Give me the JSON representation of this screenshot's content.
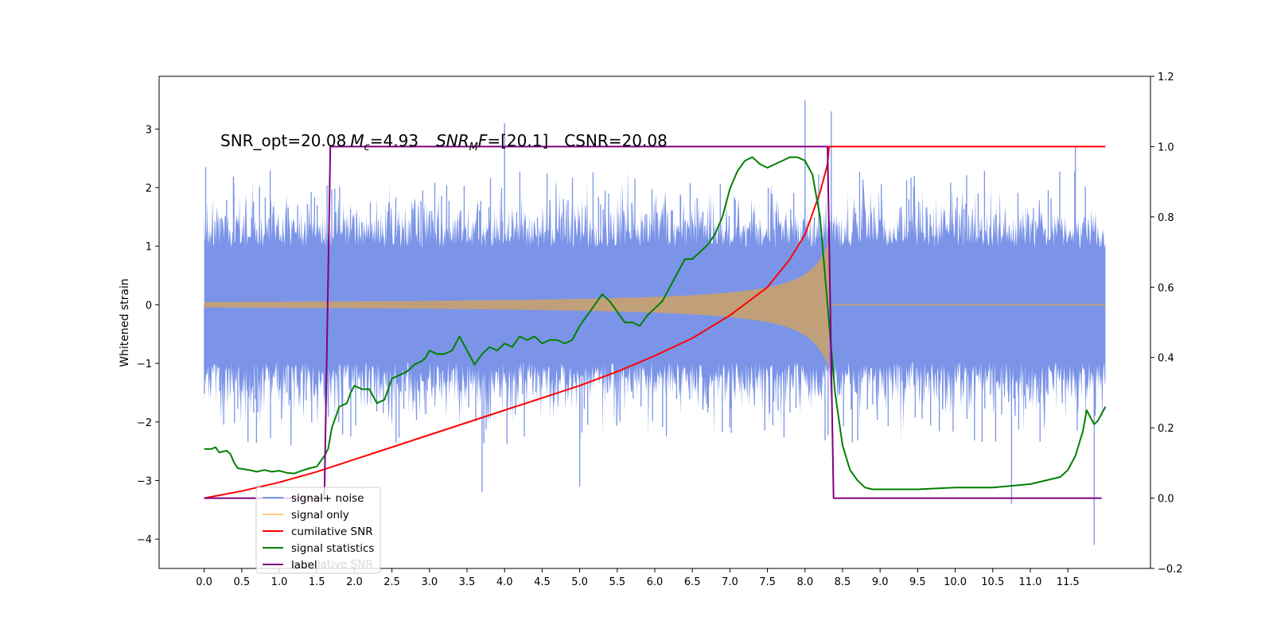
{
  "chart_data": {
    "type": "line",
    "title": "",
    "annotation": {
      "snr_opt": "SNR_opt=20.08",
      "mc_sym": "M",
      "mc_sub": "c",
      "mc_val": "=4.93",
      "snrmf_sym": "SNR",
      "snrmf_sub": "M",
      "snrmf_sym2": "F",
      "snrmf_val": "=[20.1]",
      "csnr": "CSNR=20.08"
    },
    "xlabel": "",
    "ylabel": "Whitened strain",
    "ylabel_right": "",
    "xlim": [
      -0.6,
      12.6
    ],
    "ylim": [
      -4.5,
      3.9
    ],
    "ylim_right": [
      -0.2,
      1.2
    ],
    "x_ticks": [
      "0.0",
      "0.5",
      "1.0",
      "1.5",
      "2.0",
      "2.5",
      "3.0",
      "3.5",
      "4.0",
      "4.5",
      "5.0",
      "5.5",
      "6.0",
      "6.5",
      "7.0",
      "7.5",
      "8.0",
      "8.5",
      "9.0",
      "9.5",
      "10.0",
      "10.5",
      "11.0",
      "11.5"
    ],
    "y_ticks_left": [
      "3",
      "2",
      "1",
      "0",
      "−1",
      "−2",
      "−3",
      "−4"
    ],
    "y_ticks_right": [
      "1.2",
      "1.0",
      "0.8",
      "0.6",
      "0.4",
      "0.2",
      "0.0",
      "−0.2"
    ],
    "legend": {
      "placement": "lower-left",
      "entries": [
        "signal+ noise",
        "signal only",
        "cumilative SNR",
        "signal statistics",
        "label"
      ],
      "ghost_entry": "cumilative SNR"
    },
    "colors": {
      "noise": "#7b94e8",
      "signal": "#c1a079",
      "signal_legend": "#ffd080",
      "cumulative": "#ff0000",
      "statistics": "#008000",
      "label": "#800080"
    },
    "series": [
      {
        "name": "signal+ noise",
        "axis": "left",
        "noise_band": {
          "x_start": 0.0,
          "x_end": 12.0,
          "core_amplitude": 1.3,
          "max_spikes": [
            2.35,
            3.5,
            3.3,
            3.1,
            2.7
          ],
          "min_spikes": [
            -3.2,
            -3.1,
            -3.4,
            -4.1
          ]
        }
      },
      {
        "name": "signal only",
        "axis": "left",
        "chirp": {
          "x_start": 0.0,
          "x_merger": 8.32,
          "amplitude_start": 0.03,
          "amplitude_merger": 1.1
        }
      },
      {
        "name": "cumilative SNR",
        "axis": "right",
        "points": [
          [
            0.0,
            0.0
          ],
          [
            0.5,
            0.02
          ],
          [
            1.0,
            0.045
          ],
          [
            1.5,
            0.075
          ],
          [
            2.0,
            0.11
          ],
          [
            2.5,
            0.145
          ],
          [
            3.0,
            0.18
          ],
          [
            3.5,
            0.215
          ],
          [
            4.0,
            0.25
          ],
          [
            4.5,
            0.285
          ],
          [
            5.0,
            0.32
          ],
          [
            5.5,
            0.36
          ],
          [
            6.0,
            0.405
          ],
          [
            6.5,
            0.455
          ],
          [
            7.0,
            0.52
          ],
          [
            7.5,
            0.6
          ],
          [
            7.8,
            0.68
          ],
          [
            8.0,
            0.75
          ],
          [
            8.2,
            0.87
          ],
          [
            8.3,
            0.95
          ],
          [
            8.32,
            1.0
          ],
          [
            12.0,
            1.0
          ]
        ]
      },
      {
        "name": "signal statistics",
        "axis": "right",
        "points": [
          [
            0.0,
            0.14
          ],
          [
            0.1,
            0.14
          ],
          [
            0.15,
            0.145
          ],
          [
            0.2,
            0.13
          ],
          [
            0.3,
            0.135
          ],
          [
            0.35,
            0.125
          ],
          [
            0.4,
            0.1
          ],
          [
            0.45,
            0.085
          ],
          [
            0.6,
            0.08
          ],
          [
            0.7,
            0.075
          ],
          [
            0.8,
            0.08
          ],
          [
            0.9,
            0.075
          ],
          [
            1.0,
            0.078
          ],
          [
            1.1,
            0.072
          ],
          [
            1.2,
            0.07
          ],
          [
            1.3,
            0.078
          ],
          [
            1.4,
            0.085
          ],
          [
            1.5,
            0.09
          ],
          [
            1.6,
            0.12
          ],
          [
            1.65,
            0.14
          ],
          [
            1.7,
            0.2
          ],
          [
            1.8,
            0.26
          ],
          [
            1.9,
            0.27
          ],
          [
            1.95,
            0.3
          ],
          [
            2.0,
            0.32
          ],
          [
            2.1,
            0.31
          ],
          [
            2.2,
            0.31
          ],
          [
            2.3,
            0.27
          ],
          [
            2.4,
            0.28
          ],
          [
            2.5,
            0.34
          ],
          [
            2.6,
            0.35
          ],
          [
            2.7,
            0.36
          ],
          [
            2.8,
            0.38
          ],
          [
            2.9,
            0.39
          ],
          [
            2.95,
            0.4
          ],
          [
            3.0,
            0.42
          ],
          [
            3.1,
            0.41
          ],
          [
            3.2,
            0.41
          ],
          [
            3.3,
            0.42
          ],
          [
            3.4,
            0.46
          ],
          [
            3.5,
            0.42
          ],
          [
            3.6,
            0.38
          ],
          [
            3.7,
            0.41
          ],
          [
            3.8,
            0.43
          ],
          [
            3.9,
            0.42
          ],
          [
            4.0,
            0.44
          ],
          [
            4.1,
            0.43
          ],
          [
            4.2,
            0.46
          ],
          [
            4.3,
            0.45
          ],
          [
            4.4,
            0.46
          ],
          [
            4.5,
            0.44
          ],
          [
            4.6,
            0.45
          ],
          [
            4.7,
            0.45
          ],
          [
            4.8,
            0.44
          ],
          [
            4.9,
            0.45
          ],
          [
            5.0,
            0.49
          ],
          [
            5.1,
            0.52
          ],
          [
            5.2,
            0.55
          ],
          [
            5.3,
            0.58
          ],
          [
            5.4,
            0.56
          ],
          [
            5.5,
            0.53
          ],
          [
            5.6,
            0.5
          ],
          [
            5.7,
            0.5
          ],
          [
            5.8,
            0.49
          ],
          [
            5.9,
            0.52
          ],
          [
            6.0,
            0.54
          ],
          [
            6.1,
            0.56
          ],
          [
            6.2,
            0.6
          ],
          [
            6.3,
            0.64
          ],
          [
            6.4,
            0.68
          ],
          [
            6.5,
            0.68
          ],
          [
            6.6,
            0.7
          ],
          [
            6.7,
            0.72
          ],
          [
            6.8,
            0.75
          ],
          [
            6.9,
            0.8
          ],
          [
            7.0,
            0.88
          ],
          [
            7.1,
            0.93
          ],
          [
            7.2,
            0.96
          ],
          [
            7.3,
            0.97
          ],
          [
            7.4,
            0.95
          ],
          [
            7.5,
            0.94
          ],
          [
            7.6,
            0.95
          ],
          [
            7.7,
            0.96
          ],
          [
            7.8,
            0.97
          ],
          [
            7.9,
            0.97
          ],
          [
            8.0,
            0.96
          ],
          [
            8.1,
            0.92
          ],
          [
            8.2,
            0.8
          ],
          [
            8.3,
            0.55
          ],
          [
            8.4,
            0.3
          ],
          [
            8.5,
            0.15
          ],
          [
            8.6,
            0.08
          ],
          [
            8.7,
            0.05
          ],
          [
            8.8,
            0.03
          ],
          [
            8.9,
            0.025
          ],
          [
            9.0,
            0.025
          ],
          [
            9.5,
            0.025
          ],
          [
            10.0,
            0.03
          ],
          [
            10.5,
            0.03
          ],
          [
            11.0,
            0.04
          ],
          [
            11.2,
            0.05
          ],
          [
            11.4,
            0.06
          ],
          [
            11.5,
            0.08
          ],
          [
            11.6,
            0.12
          ],
          [
            11.7,
            0.19
          ],
          [
            11.75,
            0.25
          ],
          [
            11.8,
            0.23
          ],
          [
            11.85,
            0.21
          ],
          [
            11.9,
            0.22
          ],
          [
            11.95,
            0.24
          ],
          [
            12.0,
            0.26
          ]
        ]
      },
      {
        "name": "label",
        "axis": "right",
        "points": [
          [
            0.0,
            0.0
          ],
          [
            1.6,
            0.0
          ],
          [
            1.68,
            1.0
          ],
          [
            8.3,
            1.0
          ],
          [
            8.38,
            0.0
          ],
          [
            11.95,
            0.0
          ]
        ]
      }
    ]
  }
}
